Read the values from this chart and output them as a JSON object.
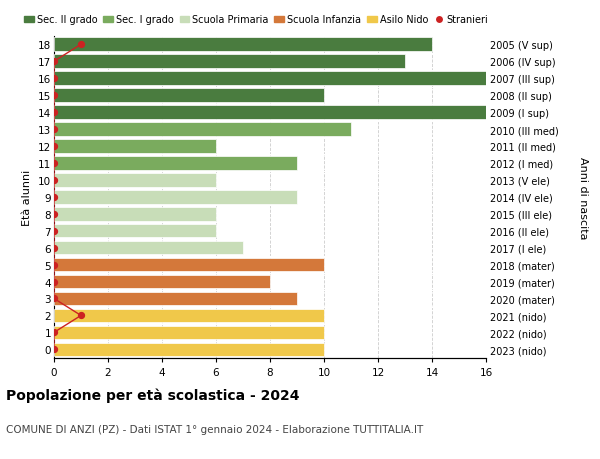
{
  "ages": [
    18,
    17,
    16,
    15,
    14,
    13,
    12,
    11,
    10,
    9,
    8,
    7,
    6,
    5,
    4,
    3,
    2,
    1,
    0
  ],
  "values": [
    14,
    13,
    17,
    10,
    17,
    11,
    6,
    9,
    6,
    9,
    6,
    6,
    7,
    10,
    8,
    9,
    10,
    10,
    10
  ],
  "right_labels": [
    "2005 (V sup)",
    "2006 (IV sup)",
    "2007 (III sup)",
    "2008 (II sup)",
    "2009 (I sup)",
    "2010 (III med)",
    "2011 (II med)",
    "2012 (I med)",
    "2013 (V ele)",
    "2014 (IV ele)",
    "2015 (III ele)",
    "2016 (II ele)",
    "2017 (I ele)",
    "2018 (mater)",
    "2019 (mater)",
    "2020 (mater)",
    "2021 (nido)",
    "2022 (nido)",
    "2023 (nido)"
  ],
  "bar_colors": [
    "#4a7c3f",
    "#4a7c3f",
    "#4a7c3f",
    "#4a7c3f",
    "#4a7c3f",
    "#7aab5e",
    "#7aab5e",
    "#7aab5e",
    "#c8ddb8",
    "#c8ddb8",
    "#c8ddb8",
    "#c8ddb8",
    "#c8ddb8",
    "#d4783a",
    "#d4783a",
    "#d4783a",
    "#f0c84a",
    "#f0c84a",
    "#f0c84a"
  ],
  "legend_labels": [
    "Sec. II grado",
    "Sec. I grado",
    "Scuola Primaria",
    "Scuola Infanzia",
    "Asilo Nido",
    "Stranieri"
  ],
  "legend_colors": [
    "#4a7c3f",
    "#7aab5e",
    "#c8ddb8",
    "#d4783a",
    "#f0c84a",
    "#cc2222"
  ],
  "ylabel": "Età alunni",
  "right_ylabel": "Anni di nascita",
  "title": "Popolazione per età scolastica - 2024",
  "subtitle": "COMUNE DI ANZI (PZ) - Dati ISTAT 1° gennaio 2024 - Elaborazione TUTTITALIA.IT",
  "xlim": [
    0,
    16
  ],
  "xticks": [
    0,
    2,
    4,
    6,
    8,
    10,
    12,
    14,
    16
  ],
  "background_color": "#ffffff",
  "grid_color": "#cccccc",
  "stranieri_color": "#cc2222",
  "stranieri_x_map": {
    "18": 1,
    "2": 1
  },
  "bar_height": 0.8
}
